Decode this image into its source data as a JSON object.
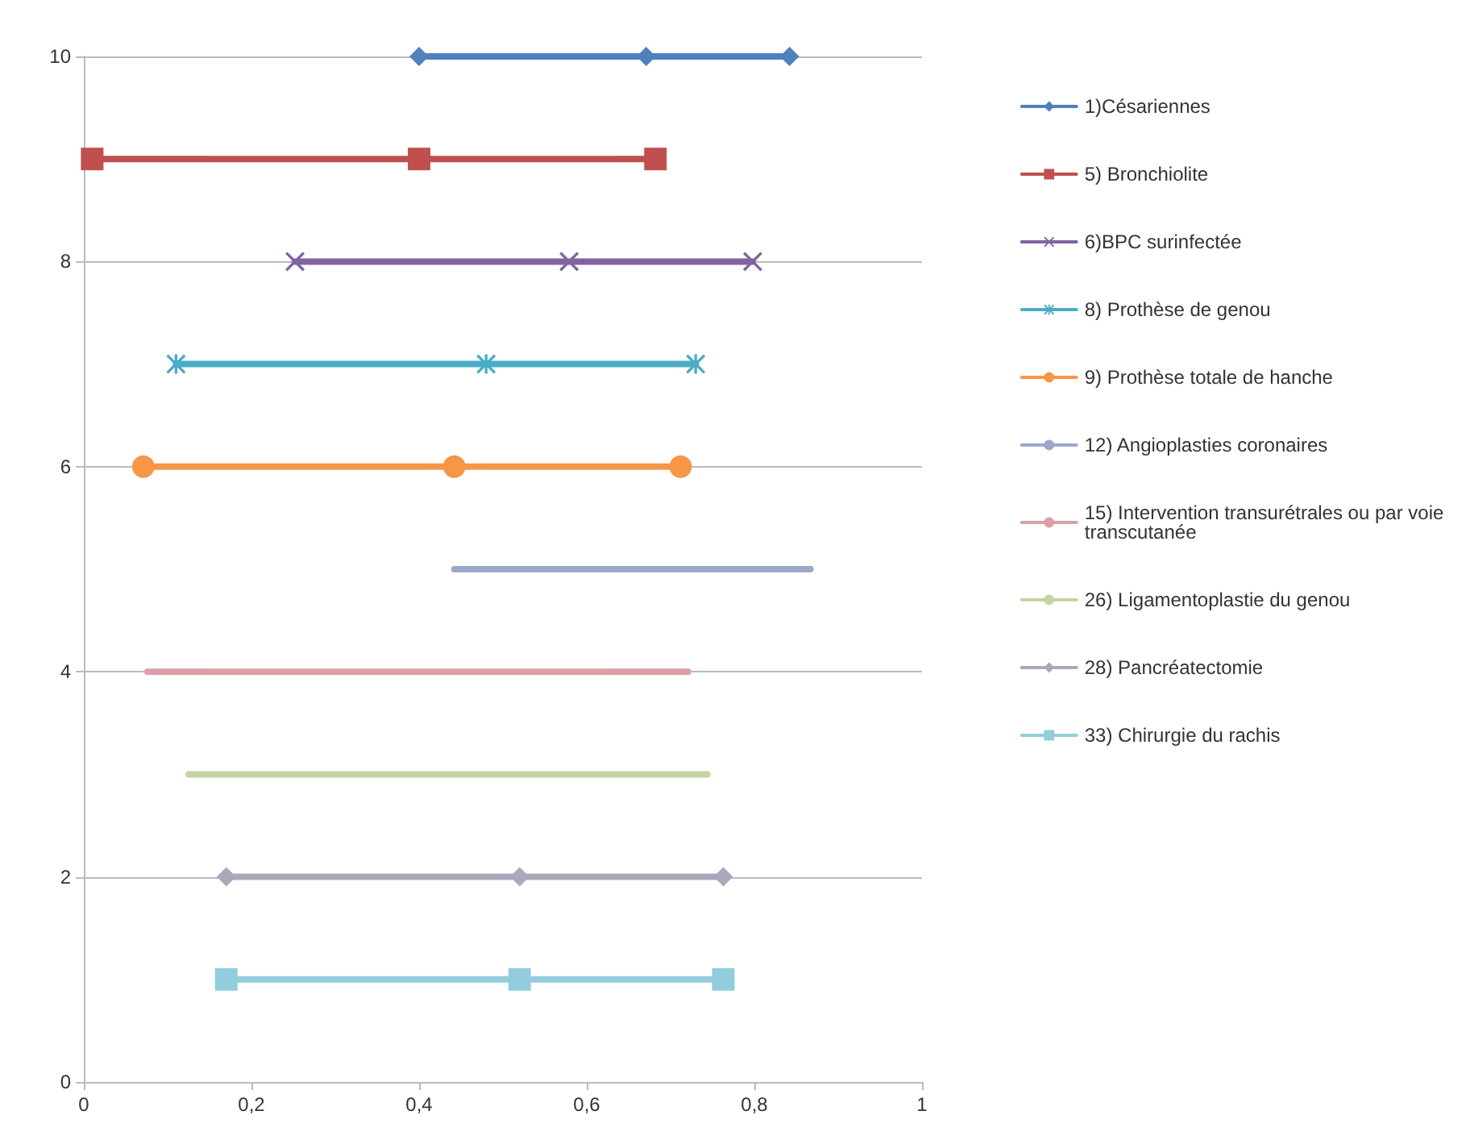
{
  "chart_data": {
    "type": "line",
    "xlim": [
      0,
      1
    ],
    "xticks": [
      0,
      {
        "value": 0.2,
        "label": "0,2"
      },
      {
        "value": 0.4,
        "label": "0,4"
      },
      {
        "value": 0.6,
        "label": "0,6"
      },
      {
        "value": 0.8,
        "label": "0,8"
      },
      1
    ],
    "ylim": [
      0,
      10
    ],
    "yticks": [
      0,
      2,
      4,
      6,
      8,
      10
    ],
    "grid": "y",
    "legend": "right",
    "line_style": "solid",
    "series": [
      {
        "name": "1)Césariennes",
        "color": "#4f81bd",
        "marker": "diamond",
        "x": [
          0.4,
          0.671,
          0.842
        ],
        "values": [
          10,
          10,
          10
        ]
      },
      {
        "name": "5) Bronchiolite",
        "color": "#c0504d",
        "marker": "square",
        "x": [
          0.01,
          0.4,
          0.682
        ],
        "values": [
          9,
          9,
          9
        ]
      },
      {
        "name": "6)BPC surinfectée",
        "color": "#8064a2",
        "marker": "cross",
        "x": [
          0.252,
          0.579,
          0.798
        ],
        "values": [
          8,
          8,
          8
        ]
      },
      {
        "name": "8) Prothèse de genou",
        "color": "#4bacc6",
        "marker": "star",
        "x": [
          0.11,
          0.48,
          0.73
        ],
        "values": [
          7,
          7,
          7
        ]
      },
      {
        "name": "9) Prothèse totale de hanche",
        "color": "#f79646",
        "marker": "circle",
        "x": [
          0.071,
          0.442,
          0.712
        ],
        "values": [
          6,
          6,
          6
        ]
      },
      {
        "name": "12) Angioplasties coronaires",
        "color": "#9ba9c9",
        "marker": "none",
        "x": [
          0.442,
          0.712,
          0.867
        ],
        "values": [
          5,
          5,
          5
        ]
      },
      {
        "name": "15) Intervention transurétrales ou par voie transcutanée",
        "color": "#d9a0a8",
        "marker": "none",
        "x": [
          0.076,
          0.448,
          0.721
        ],
        "values": [
          4,
          4,
          4
        ]
      },
      {
        "name": "26) Ligamentoplastie du genou",
        "color": "#c6d3a4",
        "marker": "none",
        "x": [
          0.125,
          0.5,
          0.744
        ],
        "values": [
          3,
          3,
          3
        ]
      },
      {
        "name": "28) Pancréatectomie",
        "color": "#aca8bc",
        "marker": "diamond",
        "x": [
          0.17,
          0.52,
          0.763
        ],
        "values": [
          2,
          2,
          2
        ]
      },
      {
        "name": "33) Chirurgie du rachis",
        "color": "#93cddd",
        "marker": "square",
        "x": [
          0.17,
          0.52,
          0.763
        ],
        "values": [
          1,
          1,
          1
        ]
      }
    ]
  }
}
